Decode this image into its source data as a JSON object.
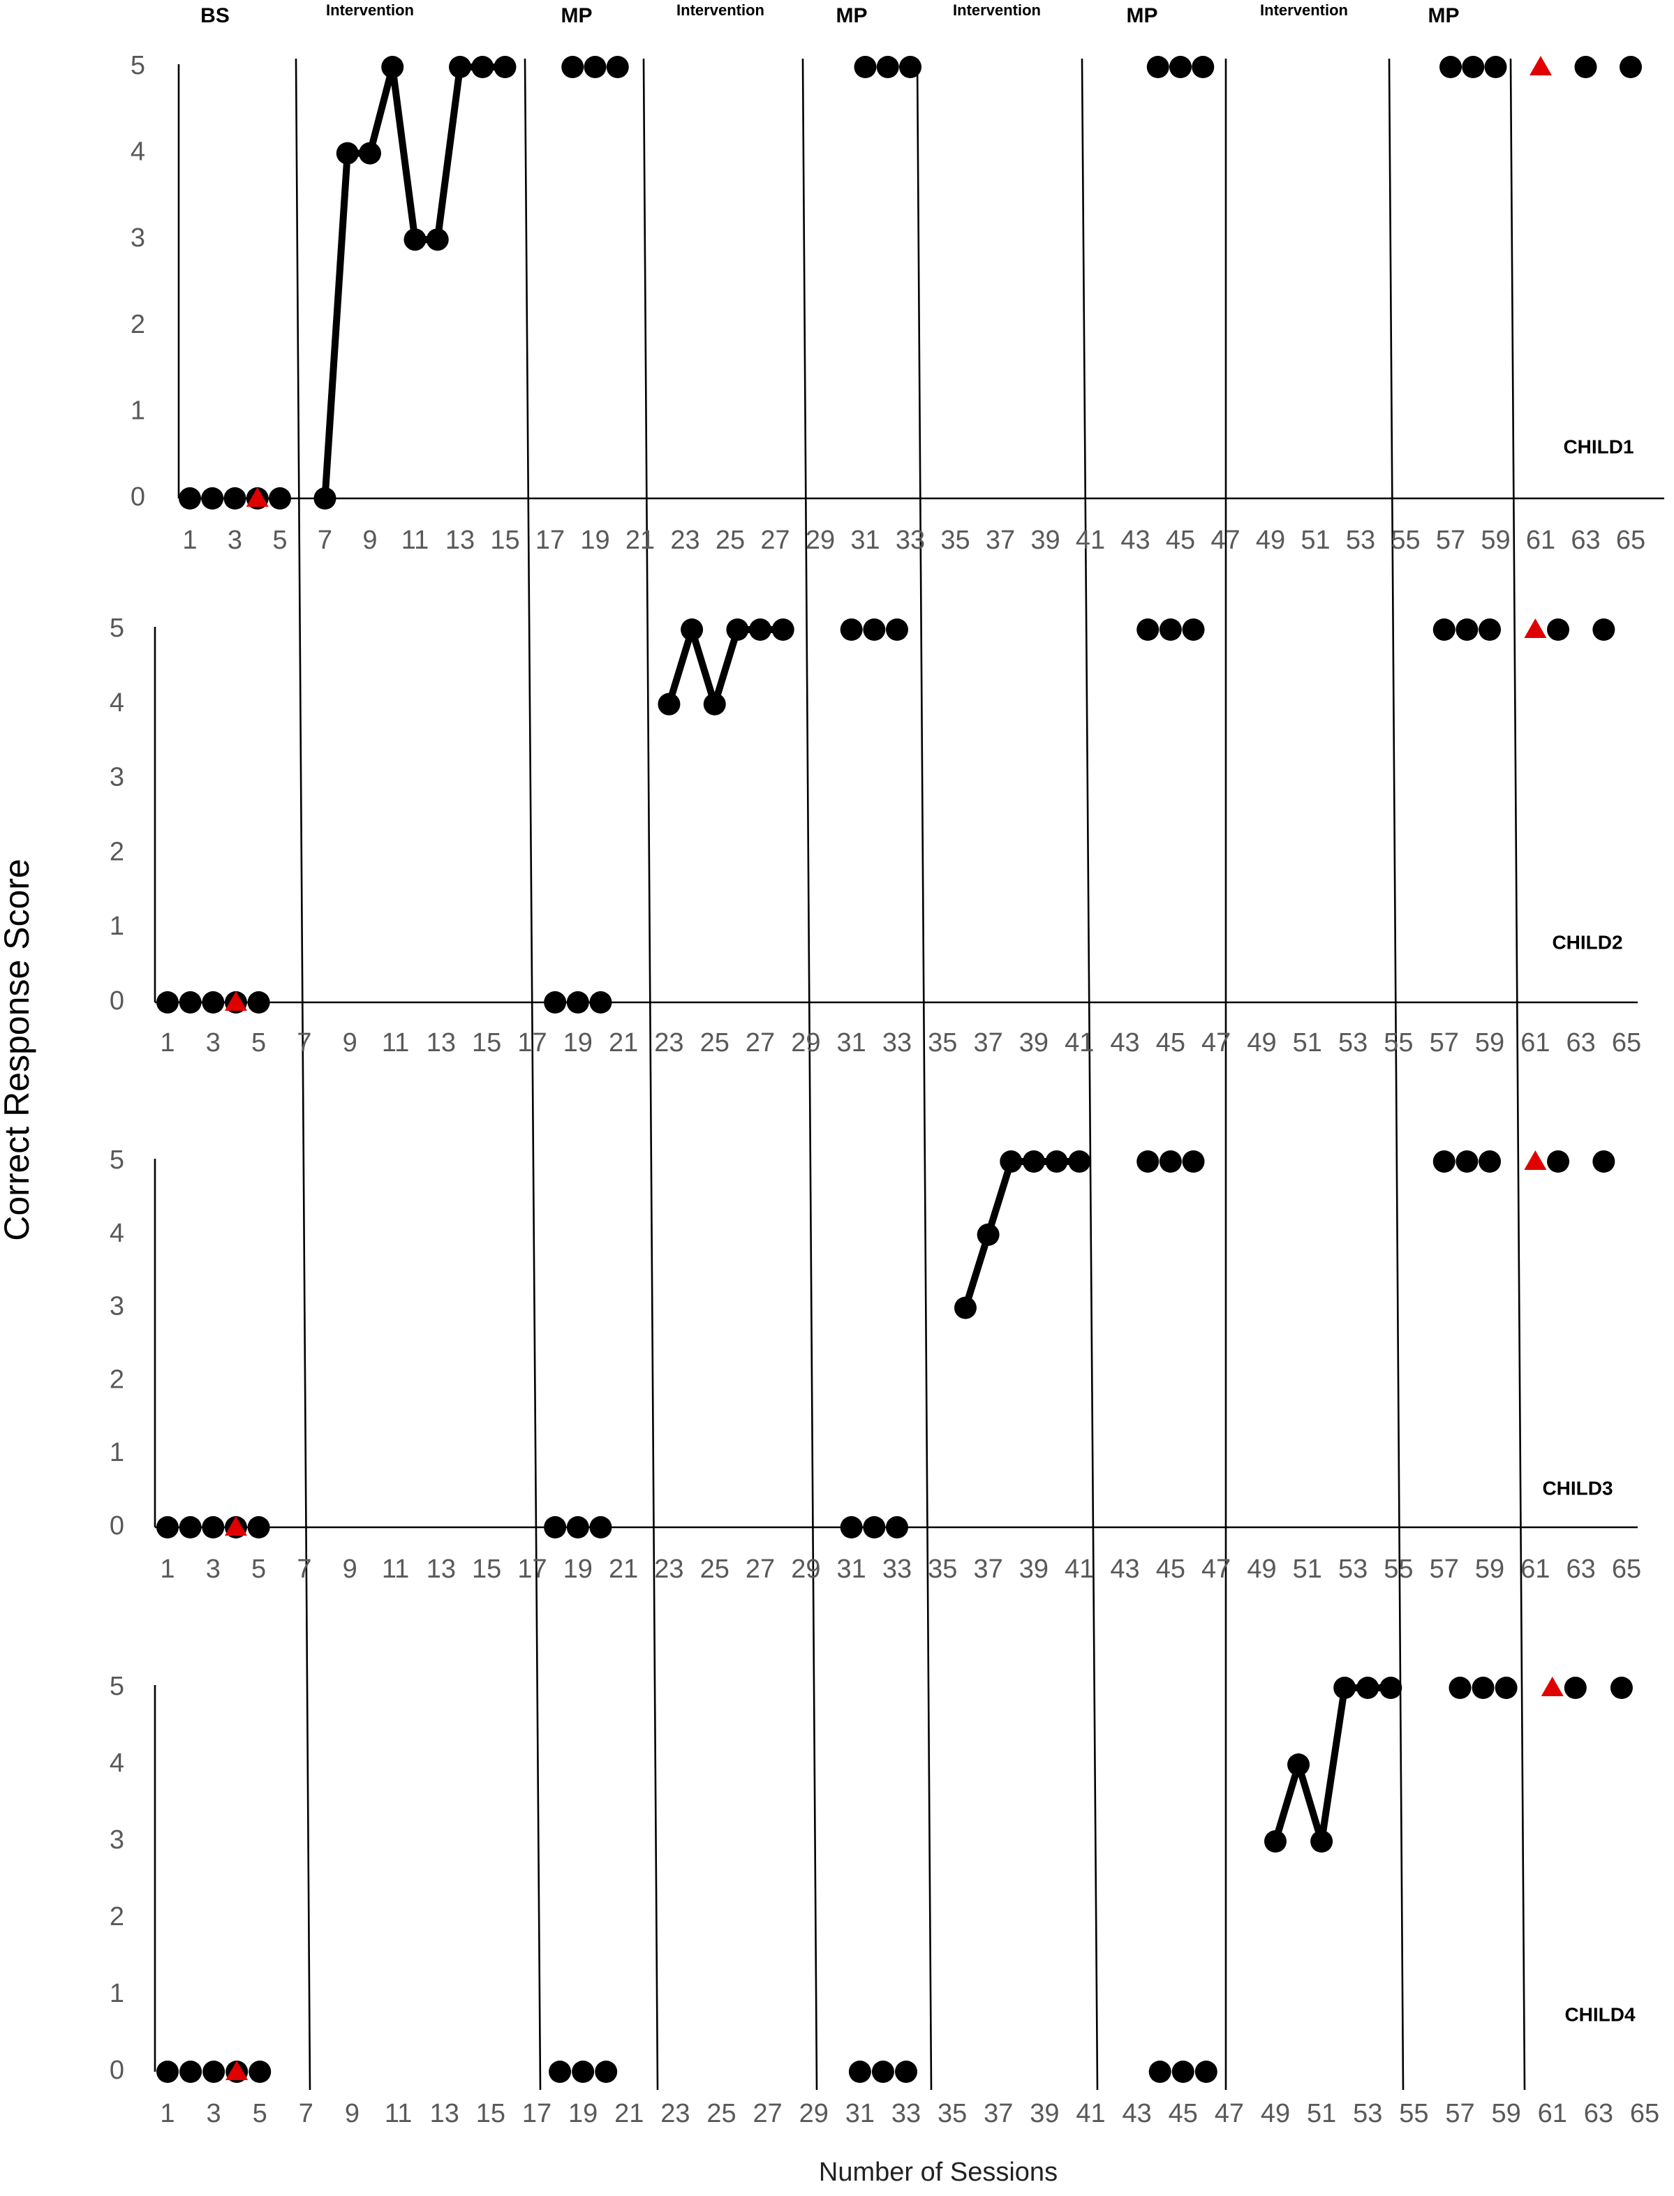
{
  "figure": {
    "phase_labels": [
      "BS",
      "Intervention",
      "MP",
      "Intervention",
      "MP",
      "Intervention",
      "MP",
      "Intervention",
      "MP"
    ],
    "y_label": "Correct Response Score",
    "x_label": "Number of Sessions"
  },
  "chart_data": [
    {
      "type": "line",
      "title": "CHILD1",
      "xlim": [
        1,
        65
      ],
      "ylim": [
        0,
        5
      ],
      "xticks": [
        1,
        3,
        5,
        7,
        9,
        11,
        13,
        15,
        17,
        19,
        21,
        23,
        25,
        27,
        29,
        31,
        33,
        35,
        37,
        39,
        41,
        43,
        45,
        47,
        49,
        51,
        53,
        55,
        57,
        59,
        61,
        63,
        65
      ],
      "yticks": [
        0,
        1,
        2,
        3,
        4,
        5
      ],
      "x": [
        1,
        2,
        3,
        4,
        5,
        7,
        8,
        9,
        10,
        11,
        12,
        13,
        14,
        15,
        18,
        19,
        20,
        31,
        32,
        33,
        44,
        45,
        46,
        57,
        58,
        59,
        61,
        63,
        65
      ],
      "series": [
        {
          "color": "#000000",
          "line": true,
          "marker": "circle",
          "values": [
            null,
            null,
            null,
            null,
            null,
            0,
            4,
            4,
            5,
            3,
            3,
            5,
            5,
            5,
            null,
            null,
            null,
            null,
            null,
            null,
            null,
            null,
            null,
            null,
            null,
            null,
            null,
            null,
            null
          ]
        },
        {
          "color": "#000000",
          "line": false,
          "marker": "circle",
          "values": [
            0,
            0,
            0,
            0,
            0,
            null,
            null,
            null,
            null,
            null,
            null,
            null,
            null,
            null,
            5,
            5,
            5,
            5,
            5,
            5,
            5,
            5,
            5,
            5,
            5,
            5,
            null,
            5,
            5
          ]
        },
        {
          "color": "#e00000",
          "line": false,
          "marker": "triangle",
          "values": [
            null,
            null,
            null,
            0,
            null,
            null,
            null,
            null,
            null,
            null,
            null,
            null,
            null,
            null,
            null,
            null,
            null,
            null,
            null,
            null,
            null,
            null,
            null,
            null,
            null,
            null,
            5,
            null,
            null
          ]
        }
      ]
    },
    {
      "type": "line",
      "title": "CHILD2",
      "xlim": [
        1,
        65
      ],
      "ylim": [
        0,
        5
      ],
      "xticks": [
        1,
        3,
        5,
        7,
        9,
        11,
        13,
        15,
        17,
        19,
        21,
        23,
        25,
        27,
        29,
        31,
        33,
        35,
        37,
        39,
        41,
        43,
        45,
        47,
        49,
        51,
        53,
        55,
        57,
        59,
        61,
        63,
        65
      ],
      "yticks": [
        0,
        1,
        2,
        3,
        4,
        5
      ],
      "x": [
        1,
        2,
        3,
        4,
        5,
        18,
        19,
        20,
        23,
        24,
        25,
        26,
        27,
        28,
        31,
        32,
        33,
        44,
        45,
        46,
        57,
        58,
        59,
        61,
        62,
        64
      ],
      "series": [
        {
          "color": "#000000",
          "line": true,
          "marker": "circle",
          "values": [
            null,
            null,
            null,
            null,
            null,
            null,
            null,
            null,
            4,
            5,
            4,
            5,
            5,
            5,
            null,
            null,
            null,
            null,
            null,
            null,
            null,
            null,
            null,
            null,
            null,
            null
          ]
        },
        {
          "color": "#000000",
          "line": false,
          "marker": "circle",
          "values": [
            0,
            0,
            0,
            0,
            0,
            0,
            0,
            0,
            null,
            null,
            null,
            null,
            null,
            null,
            5,
            5,
            5,
            5,
            5,
            5,
            5,
            5,
            5,
            null,
            5,
            5
          ]
        },
        {
          "color": "#e00000",
          "line": false,
          "marker": "triangle",
          "values": [
            null,
            null,
            null,
            0,
            null,
            null,
            null,
            null,
            null,
            null,
            null,
            null,
            null,
            null,
            null,
            null,
            null,
            null,
            null,
            null,
            null,
            null,
            null,
            5,
            null,
            null
          ]
        }
      ]
    },
    {
      "type": "line",
      "title": "CHILD3",
      "xlim": [
        1,
        65
      ],
      "ylim": [
        0,
        5
      ],
      "xticks": [
        1,
        3,
        5,
        7,
        9,
        11,
        13,
        15,
        17,
        19,
        21,
        23,
        25,
        27,
        29,
        31,
        33,
        35,
        37,
        39,
        41,
        43,
        45,
        47,
        49,
        51,
        53,
        55,
        57,
        59,
        61,
        63,
        65
      ],
      "yticks": [
        0,
        1,
        2,
        3,
        4,
        5
      ],
      "x": [
        1,
        2,
        3,
        4,
        5,
        18,
        19,
        20,
        31,
        32,
        33,
        36,
        37,
        38,
        39,
        40,
        41,
        44,
        45,
        46,
        57,
        58,
        59,
        61,
        62,
        64
      ],
      "series": [
        {
          "color": "#000000",
          "line": true,
          "marker": "circle",
          "values": [
            null,
            null,
            null,
            null,
            null,
            null,
            null,
            null,
            null,
            null,
            null,
            3,
            4,
            5,
            5,
            5,
            5,
            null,
            null,
            null,
            null,
            null,
            null,
            null,
            null,
            null
          ]
        },
        {
          "color": "#000000",
          "line": false,
          "marker": "circle",
          "values": [
            0,
            0,
            0,
            0,
            0,
            0,
            0,
            0,
            0,
            0,
            0,
            null,
            null,
            null,
            null,
            null,
            null,
            5,
            5,
            5,
            5,
            5,
            5,
            null,
            5,
            5
          ]
        },
        {
          "color": "#e00000",
          "line": false,
          "marker": "triangle",
          "values": [
            null,
            null,
            null,
            0,
            null,
            null,
            null,
            null,
            null,
            null,
            null,
            null,
            null,
            null,
            null,
            null,
            null,
            null,
            null,
            null,
            null,
            null,
            null,
            5,
            null,
            null
          ]
        }
      ]
    },
    {
      "type": "line",
      "title": "CHILD4",
      "xlim": [
        1,
        65
      ],
      "ylim": [
        0,
        5
      ],
      "xticks": [
        1,
        3,
        5,
        7,
        9,
        11,
        13,
        15,
        17,
        19,
        21,
        23,
        25,
        27,
        29,
        31,
        33,
        35,
        37,
        39,
        41,
        43,
        45,
        47,
        49,
        51,
        53,
        55,
        57,
        59,
        61,
        63,
        65
      ],
      "yticks": [
        0,
        1,
        2,
        3,
        4,
        5
      ],
      "x": [
        1,
        2,
        3,
        4,
        5,
        18,
        19,
        20,
        31,
        32,
        33,
        44,
        45,
        46,
        49,
        50,
        51,
        52,
        53,
        54,
        57,
        58,
        59,
        61,
        62,
        64
      ],
      "series": [
        {
          "color": "#000000",
          "line": true,
          "marker": "circle",
          "values": [
            null,
            null,
            null,
            null,
            null,
            null,
            null,
            null,
            null,
            null,
            null,
            null,
            null,
            null,
            3,
            4,
            3,
            5,
            5,
            5,
            null,
            null,
            null,
            null,
            null,
            null
          ]
        },
        {
          "color": "#000000",
          "line": false,
          "marker": "circle",
          "values": [
            0,
            0,
            0,
            0,
            0,
            0,
            0,
            0,
            0,
            0,
            0,
            0,
            0,
            0,
            null,
            null,
            null,
            null,
            null,
            null,
            5,
            5,
            5,
            null,
            5,
            5
          ]
        },
        {
          "color": "#e00000",
          "line": false,
          "marker": "triangle",
          "values": [
            null,
            null,
            null,
            0,
            null,
            null,
            null,
            null,
            null,
            null,
            null,
            null,
            null,
            null,
            null,
            null,
            null,
            null,
            null,
            null,
            null,
            null,
            null,
            5,
            null,
            null
          ]
        }
      ]
    }
  ]
}
